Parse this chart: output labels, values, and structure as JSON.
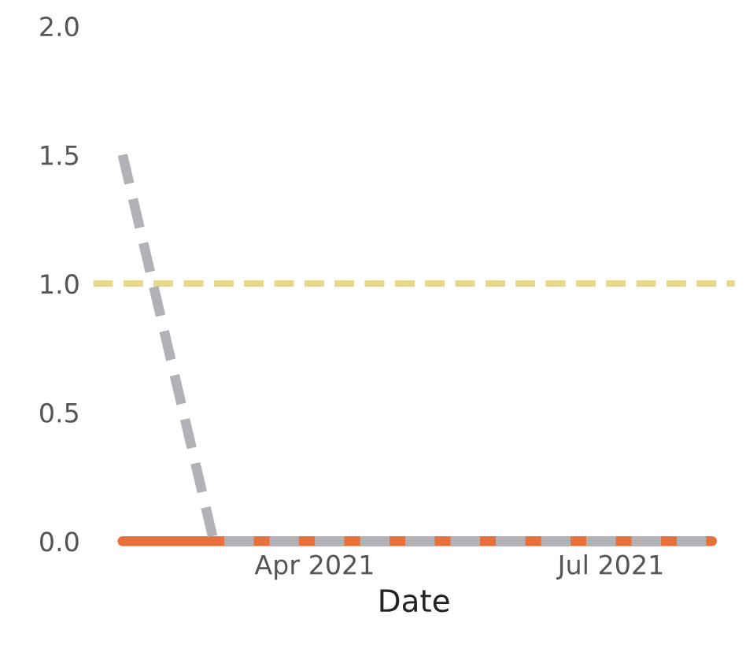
{
  "chart_data": {
    "type": "line",
    "xlabel": "Date",
    "x": [
      "2021-02-01",
      "2021-03-01",
      "2021-04-01",
      "2021-05-01",
      "2021-06-01",
      "2021-07-01",
      "2021-08-01"
    ],
    "series": [
      {
        "color": "#e8703a",
        "values": [
          0,
          0,
          0,
          0,
          0,
          0,
          0
        ],
        "line_style": "solid"
      },
      {
        "color": "#b1b1b6",
        "values": [
          1.5,
          0,
          0,
          0,
          0,
          0,
          0
        ],
        "line_style": "dashed"
      }
    ],
    "xlim": [
      "2021-01-23",
      "2021-08-08"
    ],
    "xticks": [
      {
        "value": "2021-04-01",
        "label": "Apr 2021"
      },
      {
        "value": "2021-07-01",
        "label": "Jul 2021"
      }
    ],
    "ylim": [
      0,
      2.0
    ],
    "yticks": [
      {
        "value": 0,
        "label": "0.0"
      },
      {
        "value": 0.5,
        "label": "0.5"
      },
      {
        "value": 1.0,
        "label": "1.0"
      },
      {
        "value": 1.5,
        "label": "1.5"
      },
      {
        "value": 2.0,
        "label": "2.0"
      }
    ],
    "ref_lines": [
      {
        "axis": "y",
        "value": 1.0,
        "color": "#e8d88c",
        "line_style": "dashed"
      }
    ],
    "grid": false,
    "legend": false,
    "marker": "none"
  }
}
